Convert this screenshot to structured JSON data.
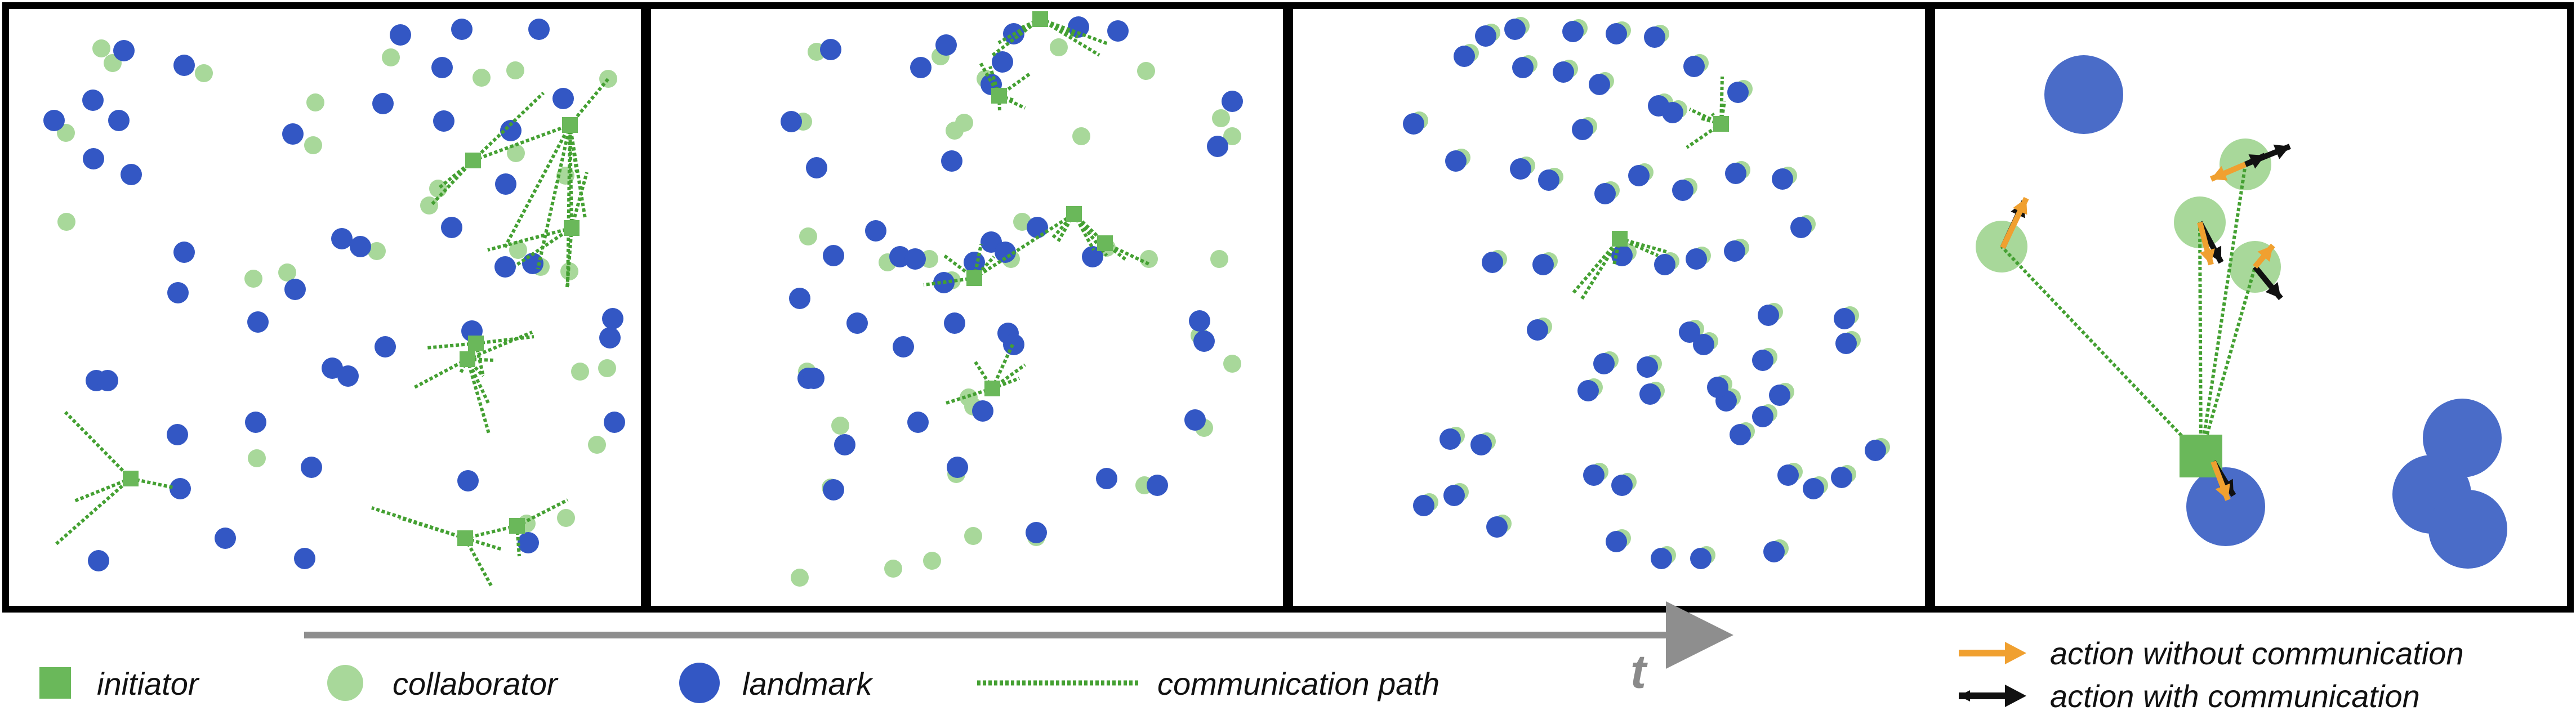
{
  "colors": {
    "initiator": "#6ab85a",
    "initiator_stroke": "#4c9a3e",
    "collaborator": "#a8d89a",
    "landmark": "#3357c4",
    "landmark_large": "#4a6cc8",
    "path": "#44a032",
    "panel_border": "#000000",
    "time_arrow": "#8e8e8e",
    "action_without": "#f0a030",
    "action_with": "#111111"
  },
  "legend": {
    "initiator": "initiator",
    "collaborator": "collaborator",
    "landmark": "landmark",
    "communication_path": "communication path",
    "time_label": "t",
    "action_without": "action without communication",
    "action_with": "action with communication"
  }
}
